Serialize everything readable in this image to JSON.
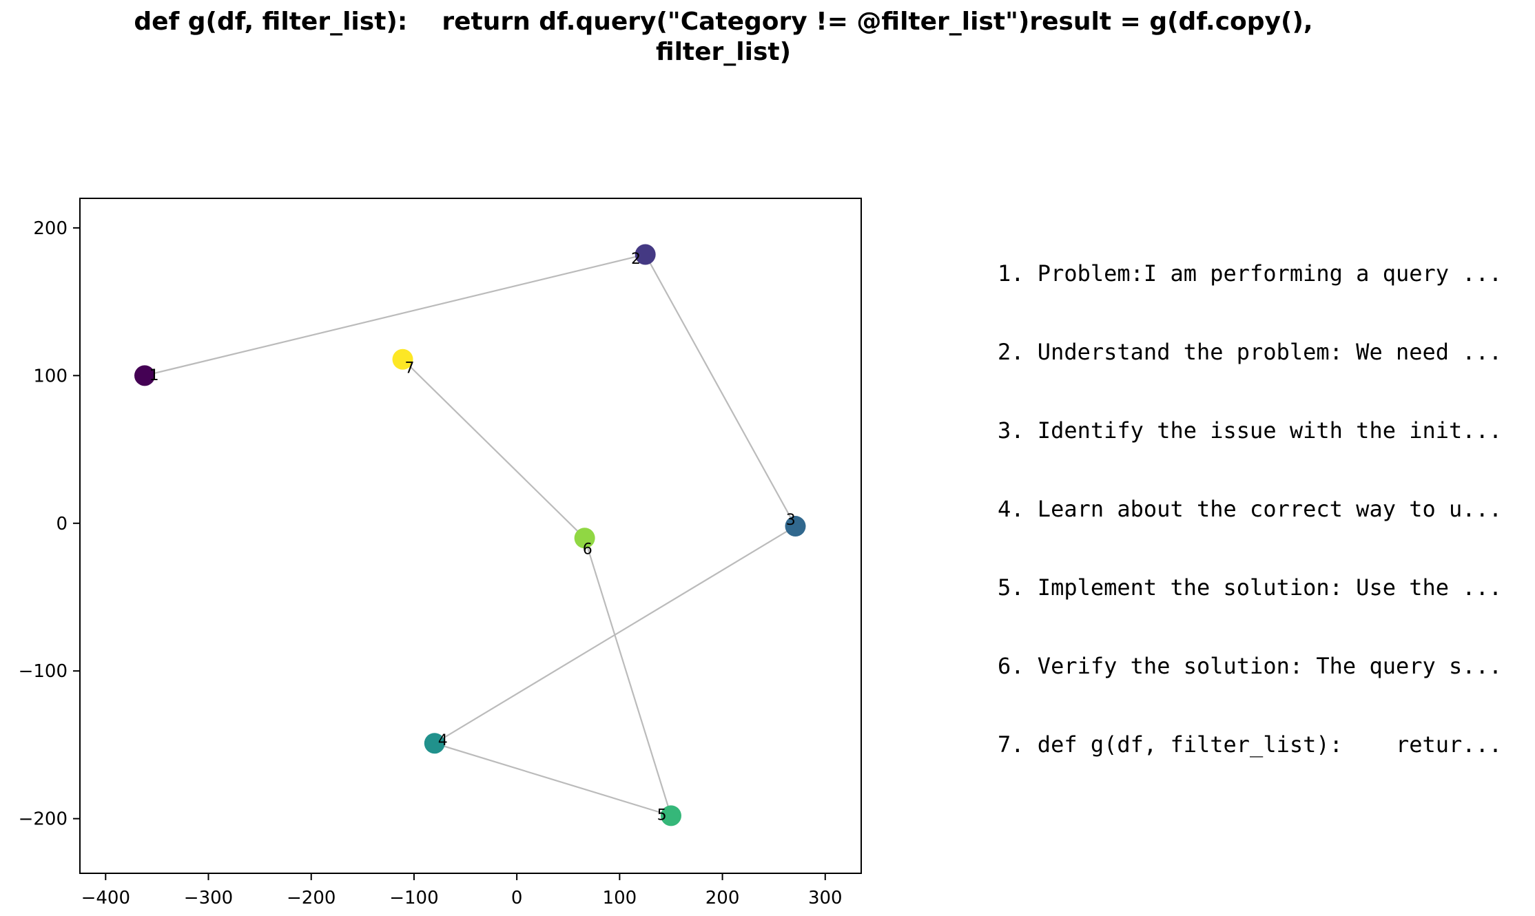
{
  "chart_data": {
    "type": "scatter",
    "title": [
      "def g(df, filter_list):    return df.query(\"Category != @filter_list\")result = g(df.copy(),",
      "filter_list)"
    ],
    "xlabel": "",
    "ylabel": "",
    "xlim": [
      -425,
      335
    ],
    "ylim": [
      -237,
      220
    ],
    "xticks": [
      -400,
      -300,
      -200,
      -100,
      0,
      100,
      200,
      300
    ],
    "yticks": [
      -200,
      -100,
      0,
      100,
      200
    ],
    "xtick_labels": [
      "−400",
      "−300",
      "−200",
      "−100",
      "0",
      "100",
      "200",
      "300"
    ],
    "ytick_labels": [
      "−200",
      "−100",
      "0",
      "100",
      "200"
    ],
    "grid": false,
    "connect_points_in_order": true,
    "line_color": "#bbbbbb",
    "colormap": "viridis",
    "points": [
      {
        "label": "1",
        "x": -362,
        "y": 100,
        "color": "#440154"
      },
      {
        "label": "2",
        "x": 125,
        "y": 182,
        "color": "#443983"
      },
      {
        "label": "3",
        "x": 271,
        "y": -2,
        "color": "#31688e"
      },
      {
        "label": "4",
        "x": -80,
        "y": -149,
        "color": "#21918c"
      },
      {
        "label": "5",
        "x": 150,
        "y": -198,
        "color": "#35b779"
      },
      {
        "label": "6",
        "x": 66,
        "y": -10,
        "color": "#90d743"
      },
      {
        "label": "7",
        "x": -111,
        "y": 111,
        "color": "#fde725"
      }
    ]
  },
  "steps": [
    "1. Problem:I am performing a query ...",
    "2. Understand the problem: We need ...",
    "3. Identify the issue with the init...",
    "4. Learn about the correct way to u...",
    "5. Implement the solution: Use the ...",
    "6. Verify the solution: The query s...",
    "7. def g(df, filter_list):    retur..."
  ]
}
